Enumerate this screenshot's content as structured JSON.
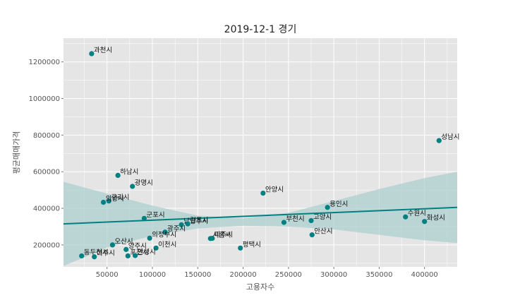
{
  "chart_data": {
    "type": "scatter",
    "title": "2019-12-1 경기",
    "xlabel": "고용자수",
    "ylabel": "평균매매가격",
    "xlim": [
      2000,
      436000
    ],
    "ylim": [
      80000,
      1330000
    ],
    "xticks": [
      50000,
      100000,
      150000,
      200000,
      250000,
      300000,
      350000,
      400000
    ],
    "yticks": [
      200000,
      400000,
      600000,
      800000,
      1000000,
      1200000
    ],
    "grid": true,
    "colors": {
      "panel": "#e5e5e5",
      "grid": "#ffffff",
      "point": "#008080",
      "regression_line": "#008080",
      "confidence_band": "#a9cdcd"
    },
    "regression": {
      "x": [
        2000,
        436000
      ],
      "y": [
        315000,
        405000
      ]
    },
    "confidence_band": {
      "x": [
        2000,
        50000,
        100000,
        150000,
        200000,
        250000,
        300000,
        350000,
        400000,
        436000
      ],
      "upper": [
        545000,
        480000,
        415000,
        360000,
        345000,
        375000,
        440000,
        505000,
        565000,
        600000
      ],
      "lower": [
        85000,
        185000,
        250000,
        290000,
        305000,
        300000,
        285000,
        255000,
        225000,
        210000
      ]
    },
    "points": [
      {
        "label": "과천시",
        "x": 33000,
        "y": 1245000
      },
      {
        "label": "성남시",
        "x": 416000,
        "y": 770000
      },
      {
        "label": "하남시",
        "x": 62000,
        "y": 580000
      },
      {
        "label": "광명시",
        "x": 78000,
        "y": 520000
      },
      {
        "label": "안양시",
        "x": 222000,
        "y": 483000
      },
      {
        "label": "구리시",
        "x": 52000,
        "y": 440000
      },
      {
        "label": "의왕시",
        "x": 46000,
        "y": 433000
      },
      {
        "label": "용인시",
        "x": 293000,
        "y": 405000
      },
      {
        "label": "수원시",
        "x": 379000,
        "y": 353000
      },
      {
        "label": "화성시",
        "x": 400000,
        "y": 328000
      },
      {
        "label": "군포시",
        "x": 91000,
        "y": 345000
      },
      {
        "label": "부천시",
        "x": 245000,
        "y": 323000
      },
      {
        "label": "고양시",
        "x": 275000,
        "y": 333000
      },
      {
        "label": "남양주시",
        "x": 132000,
        "y": 310000
      },
      {
        "label": "김포시",
        "x": 139000,
        "y": 315000
      },
      {
        "label": "광주시",
        "x": 114000,
        "y": 270000
      },
      {
        "label": "안산시",
        "x": 276000,
        "y": 255000
      },
      {
        "label": "시흥시",
        "x": 164000,
        "y": 235000
      },
      {
        "label": "파주시",
        "x": 166000,
        "y": 236000
      },
      {
        "label": "의정부시",
        "x": 97000,
        "y": 237000
      },
      {
        "label": "오산시",
        "x": 56000,
        "y": 200000
      },
      {
        "label": "평택시",
        "x": 197000,
        "y": 183000
      },
      {
        "label": "이천시",
        "x": 104000,
        "y": 183000
      },
      {
        "label": "양주시",
        "x": 71000,
        "y": 175000
      },
      {
        "label": "포천시",
        "x": 73000,
        "y": 140000
      },
      {
        "label": "안성시",
        "x": 81000,
        "y": 142000
      },
      {
        "label": "동두천시",
        "x": 22000,
        "y": 140000
      },
      {
        "label": "여주시",
        "x": 36000,
        "y": 135000
      }
    ]
  }
}
